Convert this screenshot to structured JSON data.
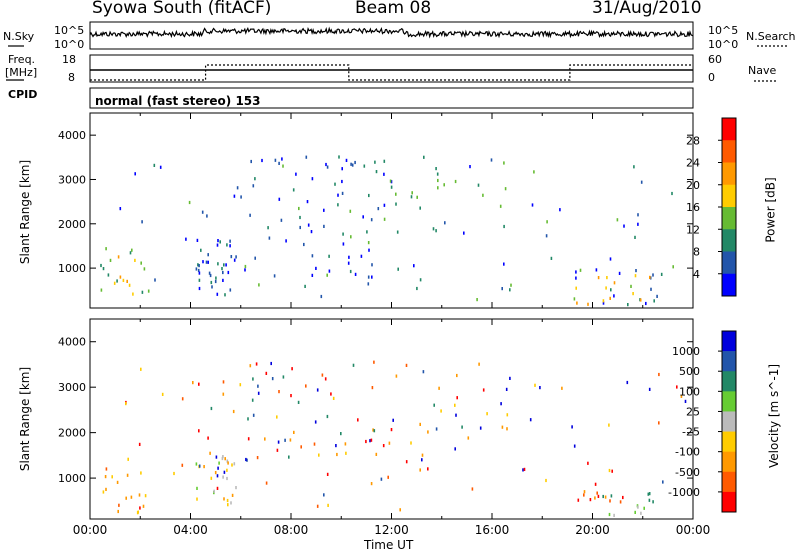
{
  "header": {
    "station": "Syowa South (fitACF)",
    "beam": "Beam 08",
    "date": "31/Aug/2010"
  },
  "side_labels": {
    "nsky": "N.Sky",
    "nsearch": "N.Search",
    "freq_top": "Freq.",
    "freq_unit": "[MHz]",
    "cpid": "CPID",
    "nave": "Nave",
    "cpid_text": "normal (fast stereo) 153"
  },
  "noise_axis": {
    "left_ticks": [
      "10^5",
      "10^0"
    ],
    "right_ticks": [
      "10^5",
      "10^0"
    ]
  },
  "freq_axis": {
    "left_ticks": [
      "18",
      "8"
    ],
    "right_ticks": [
      "60",
      "0"
    ]
  },
  "time_axis": {
    "label": "Time UT",
    "ticks": [
      "00:00",
      "04:00",
      "08:00",
      "12:00",
      "16:00",
      "20:00",
      "00:00"
    ]
  },
  "chart_data": [
    {
      "type": "heatmap",
      "title": "Power",
      "ylabel": "Slant Range [km]",
      "xlabel": "",
      "xlim": [
        0,
        24
      ],
      "ylim": [
        100,
        4500
      ],
      "yticks": [
        1000,
        2000,
        3000,
        4000
      ],
      "colorbar": {
        "label": "Power [dB]",
        "ticks": [
          "28",
          "24",
          "20",
          "16",
          "12",
          "8",
          "4"
        ],
        "colors": [
          "#ff0000",
          "#ff5a00",
          "#ff9900",
          "#ffcc00",
          "#66bb33",
          "#228866",
          "#2255aa",
          "#0000ff"
        ]
      },
      "regions": [
        {
          "t": [
            0.3,
            2.2
          ],
          "r": [
            180,
            1500
          ],
          "c": [
            2,
            3,
            4,
            5
          ],
          "d": 0.35
        },
        {
          "t": [
            4.2,
            5.8
          ],
          "r": [
            400,
            1700
          ],
          "c": [
            5,
            6,
            7
          ],
          "d": 0.6
        },
        {
          "t": [
            4.2,
            12.0
          ],
          "r": [
            800,
            3600
          ],
          "c": [
            6,
            7
          ],
          "d": 0.12
        },
        {
          "t": [
            8.0,
            17.0
          ],
          "r": [
            1800,
            3600
          ],
          "c": [
            4,
            5
          ],
          "d": 0.1
        },
        {
          "t": [
            1.0,
            24.0
          ],
          "r": [
            300,
            3600
          ],
          "c": [
            4,
            5,
            6,
            7
          ],
          "d": 0.04
        },
        {
          "t": [
            19.2,
            22.6
          ],
          "r": [
            200,
            1000
          ],
          "c": [
            2,
            3,
            4,
            5,
            6,
            7
          ],
          "d": 0.5
        }
      ]
    },
    {
      "type": "heatmap",
      "title": "Velocity",
      "ylabel": "Slant Range [km]",
      "xlabel": "Time UT",
      "xlim": [
        0,
        24
      ],
      "ylim": [
        100,
        4500
      ],
      "yticks": [
        1000,
        2000,
        3000,
        4000
      ],
      "colorbar": {
        "label": "Velocity [m s^-1]",
        "ticks": [
          "1000",
          "500",
          "100",
          "25",
          "-25",
          "-100",
          "-500",
          "-1000"
        ],
        "colors": [
          "#0000dd",
          "#2255aa",
          "#228866",
          "#66cc33",
          "#bbbbbb",
          "#ffcc00",
          "#ff9900",
          "#ff5a00",
          "#ff0000"
        ]
      },
      "regions": [
        {
          "t": [
            0.3,
            2.2
          ],
          "r": [
            180,
            1500
          ],
          "c": [
            5,
            6,
            7
          ],
          "d": 0.3
        },
        {
          "t": [
            4.2,
            5.8
          ],
          "r": [
            400,
            1700
          ],
          "c": [
            3,
            4,
            5,
            6
          ],
          "d": 0.55
        },
        {
          "t": [
            4.2,
            12.0
          ],
          "r": [
            800,
            3600
          ],
          "c": [
            0,
            1,
            2,
            5,
            6,
            7,
            8
          ],
          "d": 0.1
        },
        {
          "t": [
            8.0,
            17.0
          ],
          "r": [
            1800,
            3600
          ],
          "c": [
            0,
            2,
            5,
            6,
            8
          ],
          "d": 0.09
        },
        {
          "t": [
            1.0,
            24.0
          ],
          "r": [
            300,
            3600
          ],
          "c": [
            0,
            1,
            5,
            6,
            7,
            8
          ],
          "d": 0.04
        },
        {
          "t": [
            19.2,
            21.2
          ],
          "r": [
            500,
            900
          ],
          "c": [
            6,
            7,
            8
          ],
          "d": 0.7
        },
        {
          "t": [
            20.2,
            22.6
          ],
          "r": [
            200,
            700
          ],
          "c": [
            2,
            3,
            4
          ],
          "d": 0.5
        }
      ]
    }
  ]
}
